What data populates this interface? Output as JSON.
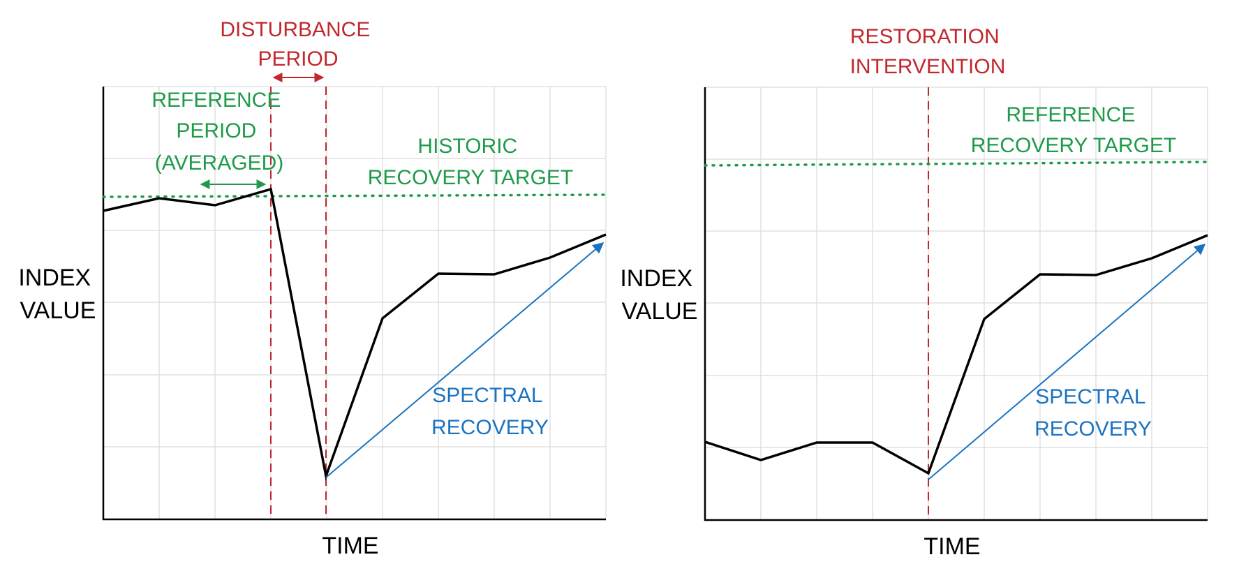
{
  "colors": {
    "index_line": "#000000",
    "target": "#1e9a4a",
    "event": "#c1272d",
    "spectral": "#1a73c0",
    "grid": "#d9d9d9"
  },
  "panels": [
    {
      "y_label_line1": "INDEX",
      "y_label_line2": "VALUE",
      "x_label": "TIME",
      "event_label_line1": "DISTURBANCE",
      "event_label_line2": "PERIOD",
      "reference_label": [
        "REFERENCE",
        "PERIOD",
        "(AVERAGED)"
      ],
      "target_label_line1": "HISTORIC",
      "target_label_line2": "RECOVERY TARGET",
      "spectral_label_line1": "SPECTRAL",
      "spectral_label_line2": "RECOVERY"
    },
    {
      "y_label_line1": "INDEX",
      "y_label_line2": "VALUE",
      "x_label": "TIME",
      "event_label_line1": "RESTORATION",
      "event_label_line2": "INTERVENTION",
      "target_label_line1": "REFERENCE",
      "target_label_line2": "RECOVERY TARGET",
      "spectral_label_line1": "SPECTRAL",
      "spectral_label_line2": "RECOVERY"
    }
  ]
}
